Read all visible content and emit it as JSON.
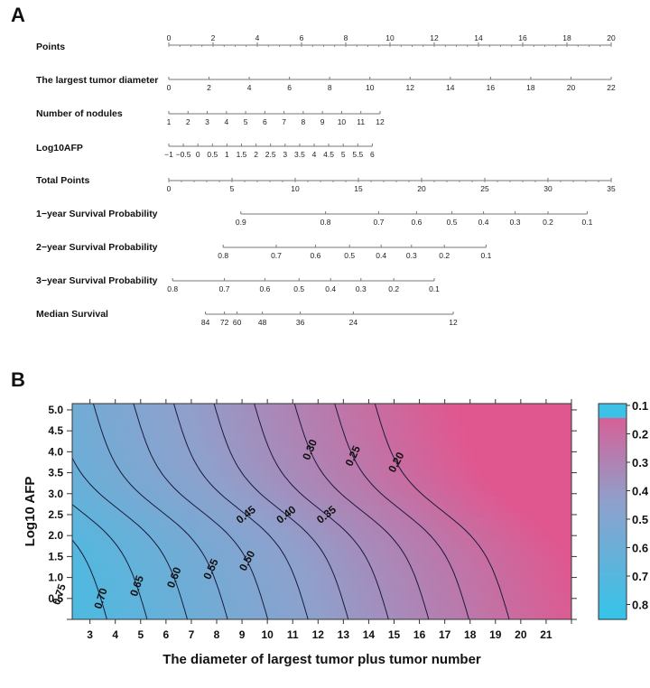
{
  "panels": {
    "a_label": "A",
    "b_label": "B"
  },
  "chart_data": [
    {
      "type": "table",
      "subtype": "nomogram",
      "panel": "A",
      "rows": [
        {
          "label": "Points",
          "min": 0,
          "max": 20,
          "ticks": [
            0,
            2,
            4,
            6,
            8,
            10,
            12,
            14,
            16,
            18,
            20
          ],
          "tick_labels": [
            "0",
            "2",
            "4",
            "6",
            "8",
            "10",
            "12",
            "14",
            "16",
            "18",
            "20"
          ],
          "minor_step": 0.5,
          "labels_above": true
        },
        {
          "label": "The largest tumor diameter",
          "min": 0,
          "max": 22,
          "ticks": [
            0,
            2,
            4,
            6,
            8,
            10,
            12,
            14,
            16,
            18,
            20,
            22
          ],
          "tick_labels": [
            "0",
            "2",
            "4",
            "6",
            "8",
            "10",
            "12",
            "14",
            "16",
            "18",
            "20",
            "22"
          ],
          "points_range": [
            0,
            20
          ]
        },
        {
          "label": "Number of nodules",
          "min": 1,
          "max": 12,
          "ticks": [
            1,
            2,
            3,
            4,
            5,
            6,
            7,
            8,
            9,
            10,
            11,
            12
          ],
          "tick_labels": [
            "1",
            "2",
            "3",
            "4",
            "5",
            "6",
            "7",
            "8",
            "9",
            "10",
            "11",
            "12"
          ],
          "points_range": [
            0,
            9.55
          ]
        },
        {
          "label": "Log10AFP",
          "min": -1,
          "max": 6,
          "ticks": [
            -1,
            -0.5,
            0,
            0.5,
            1,
            1.5,
            2,
            2.5,
            3,
            3.5,
            4,
            4.5,
            5,
            5.5,
            6
          ],
          "tick_labels": [
            "−1",
            "−0.5",
            "0",
            "0.5",
            "1",
            "1.5",
            "2",
            "2.5",
            "3",
            "3.5",
            "4",
            "4.5",
            "5",
            "5.5",
            "6"
          ],
          "points_range": [
            0,
            9.2
          ]
        },
        {
          "label": "Total Points",
          "min": 0,
          "max": 35,
          "ticks": [
            0,
            5,
            10,
            15,
            20,
            25,
            30,
            35
          ],
          "tick_labels": [
            "0",
            "5",
            "10",
            "15",
            "20",
            "25",
            "30",
            "35"
          ],
          "minor_step": 1
        },
        {
          "label": "1−year Survival Probability",
          "ticks": [
            0.9,
            0.8,
            0.7,
            0.6,
            0.5,
            0.4,
            0.3,
            0.2,
            0.1
          ],
          "tick_labels": [
            "0.9",
            "0.8",
            "0.7",
            "0.6",
            "0.5",
            "0.4",
            "0.3",
            "0.2",
            "0.1"
          ],
          "total_points_at_ticks": [
            5.7,
            12.4,
            16.6,
            19.6,
            22.4,
            24.9,
            27.4,
            30.0,
            33.1
          ]
        },
        {
          "label": "2−year Survival Probability",
          "ticks": [
            0.8,
            0.7,
            0.6,
            0.5,
            0.4,
            0.3,
            0.2,
            0.1
          ],
          "tick_labels": [
            "0.8",
            "0.7",
            "0.6",
            "0.5",
            "0.4",
            "0.3",
            "0.2",
            "0.1"
          ],
          "total_points_at_ticks": [
            4.3,
            8.5,
            11.6,
            14.3,
            16.8,
            19.2,
            21.8,
            25.1
          ]
        },
        {
          "label": "3−year Survival Probability",
          "ticks": [
            0.8,
            0.7,
            0.6,
            0.5,
            0.4,
            0.3,
            0.2,
            0.1
          ],
          "tick_labels": [
            "0.8",
            "0.7",
            "0.6",
            "0.5",
            "0.4",
            "0.3",
            "0.2",
            "0.1"
          ],
          "total_points_at_ticks": [
            0.3,
            4.4,
            7.6,
            10.3,
            12.8,
            15.2,
            17.8,
            21.0
          ]
        },
        {
          "label": "Median Survival",
          "ticks": [
            84,
            72,
            60,
            48,
            36,
            24,
            12
          ],
          "tick_labels": [
            "84",
            "72",
            "60",
            "48",
            "36",
            "24",
            "12"
          ],
          "total_points_at_ticks": [
            2.9,
            4.4,
            5.4,
            7.4,
            10.4,
            14.6,
            22.5
          ]
        }
      ]
    },
    {
      "type": "heatmap",
      "subtype": "filled-contour",
      "panel": "B",
      "xlabel": "The diameter of largest tumor plus tumor number",
      "ylabel": "Log10 AFP",
      "xlim": [
        2.3,
        22
      ],
      "ylim": [
        0,
        5.15
      ],
      "xticks": [
        3,
        4,
        5,
        6,
        7,
        8,
        9,
        10,
        11,
        12,
        13,
        14,
        15,
        16,
        17,
        18,
        19,
        20,
        21
      ],
      "yticks": [
        0.5,
        1.0,
        1.5,
        2.0,
        2.5,
        3.0,
        3.5,
        4.0,
        4.5,
        5.0
      ],
      "ytick_labels": [
        "0.5",
        "1.0",
        "1.5",
        "2.0",
        "2.5",
        "3.0",
        "3.5",
        "4.0",
        "4.5",
        "5.0"
      ],
      "contour_levels": [
        0.75,
        0.7,
        0.65,
        0.6,
        0.55,
        0.5,
        0.45,
        0.4,
        0.35,
        0.3,
        0.25,
        0.2
      ],
      "contour_labels": [
        "0.75",
        "0.70",
        "0.65",
        "0.60",
        "0.55",
        "0.50",
        "0.45",
        "0.40",
        "0.35",
        "0.30",
        "0.25",
        "0.20"
      ],
      "value_range": [
        0.1,
        0.85
      ],
      "colorbar": {
        "ticks": [
          0.1,
          0.2,
          0.3,
          0.4,
          0.5,
          0.6,
          0.7,
          0.8
        ],
        "tick_labels": [
          "0.1",
          "0.2",
          "0.3",
          "0.4",
          "0.5",
          "0.6",
          "0.7",
          "0.8"
        ],
        "low_color": "#e0578f",
        "mid_color": "#8fa0cc",
        "high_color": "#35c4e8",
        "top_band_color": "#3cc2e6"
      }
    }
  ]
}
